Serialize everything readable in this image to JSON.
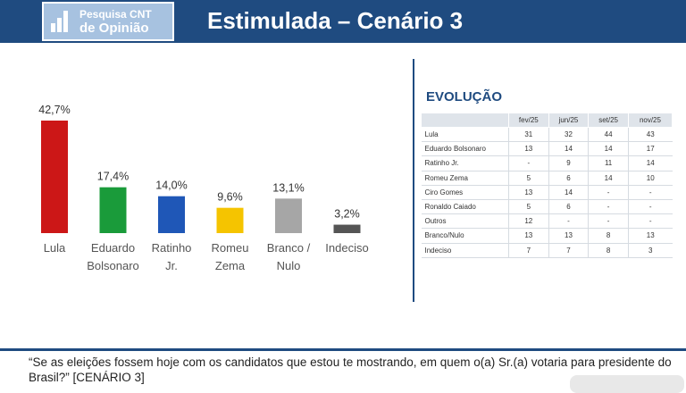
{
  "header": {
    "logo_line1": "Pesquisa CNT",
    "logo_line2": "de Opinião",
    "title": "Estimulada – Cenário 3"
  },
  "chart_data": {
    "type": "bar",
    "categories": [
      [
        "Lula"
      ],
      [
        "Eduardo",
        "Bolsonaro"
      ],
      [
        "Ratinho",
        "Jr."
      ],
      [
        "Romeu",
        "Zema"
      ],
      [
        "Branco /",
        "Nulo"
      ],
      [
        "Indeciso"
      ]
    ],
    "values": [
      42.7,
      17.4,
      14.0,
      9.6,
      13.1,
      3.2
    ],
    "labels": [
      "42,7%",
      "17,4%",
      "14,0%",
      "9,6%",
      "13,1%",
      "3,2%"
    ],
    "colors": [
      "#cc1717",
      "#1a9b3a",
      "#1f57b7",
      "#f5c400",
      "#a6a6a6",
      "#555555"
    ],
    "ylim": [
      0,
      42.7
    ]
  },
  "evolution": {
    "title": "EVOLUÇÃO",
    "columns": [
      "fev/25",
      "jun/25",
      "set/25",
      "nov/25"
    ],
    "rows": [
      {
        "name": "Lula",
        "values": [
          "31",
          "32",
          "44",
          "43"
        ]
      },
      {
        "name": "Eduardo Bolsonaro",
        "values": [
          "13",
          "14",
          "14",
          "17"
        ]
      },
      {
        "name": "Ratinho Jr.",
        "values": [
          "-",
          "9",
          "11",
          "14"
        ]
      },
      {
        "name": "Romeu Zema",
        "values": [
          "5",
          "6",
          "14",
          "10"
        ]
      },
      {
        "name": "Ciro Gomes",
        "values": [
          "13",
          "14",
          "-",
          "-"
        ]
      },
      {
        "name": "Ronaldo Caiado",
        "values": [
          "5",
          "6",
          "-",
          "-"
        ]
      },
      {
        "name": "Outros",
        "values": [
          "12",
          "-",
          "-",
          "-"
        ]
      },
      {
        "name": "Branco/Nulo",
        "values": [
          "13",
          "13",
          "8",
          "13"
        ]
      },
      {
        "name": "Indeciso",
        "values": [
          "7",
          "7",
          "8",
          "3"
        ]
      }
    ]
  },
  "question": "“Se as eleições fossem hoje com os candidatos que estou te mostrando, em quem o(a) Sr.(a) votaria para presidente do Brasil?” [CENÁRIO 3]"
}
